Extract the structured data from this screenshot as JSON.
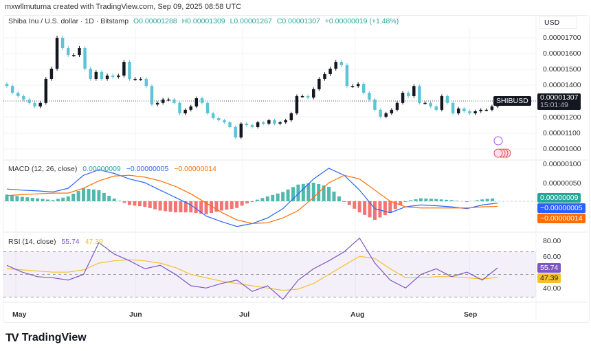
{
  "header": {
    "credit": "mxwllmutuma created with TradingView.com, Sep 09, 2025 08:58 UTC"
  },
  "legend": {
    "symbol": "Shiba Inu / U.S. dollar · 1D · Bitstamp",
    "open": "O0.00001288",
    "high": "H0.00001309",
    "low": "L0.00001267",
    "close": "C0.00001307",
    "change": "+0.00000019 (+1.48%)"
  },
  "price_axis": {
    "currency": "USD",
    "ticks": [
      "0.00001700",
      "0.00001600",
      "0.00001500",
      "0.00001400",
      "0.00001200",
      "0.00001100",
      "0.00001000",
      "0.00000100"
    ],
    "symbol_tag": "SHIBUSD",
    "last_price": "0.00001307",
    "countdown": "15:01:49"
  },
  "macd": {
    "label": "MACD (12, 26, close)",
    "hist": "0.00000009",
    "macd": "−0.00000005",
    "signal": "−0.00000014",
    "ticks": [
      "0.00000050"
    ]
  },
  "rsi": {
    "label": "RSI (14, close)",
    "rsi": "55.74",
    "ma": "47.39",
    "ticks": [
      "80.00",
      "60.00",
      "40.00"
    ]
  },
  "time_axis": [
    "May",
    "Jun",
    "Jul",
    "Aug",
    "Sep"
  ],
  "brand": "TradingView",
  "colors": {
    "up": "#131722",
    "down": "#5bc4d6",
    "macd": "#2962ff",
    "signal": "#ff6d00",
    "rsi": "#7e57c2",
    "rsi_ma": "#f5c02b",
    "hist_pos": "#26a69a",
    "hist_neg": "#ef5350"
  },
  "chart_data": {
    "type": "candlestick",
    "title": "Shiba Inu / U.S. dollar · 1D · Bitstamp",
    "ylim": [
      9.5e-06,
      1.78e-05
    ],
    "x_ticks": [
      "May",
      "Jun",
      "Jul",
      "Aug",
      "Sep"
    ],
    "close": [
      1.4e-05,
      1.358e-05,
      1.337e-05,
      1.316e-05,
      1.295e-05,
      1.273e-05,
      1.295e-05,
      1.444e-05,
      1.508e-05,
      1.7e-05,
      1.636e-05,
      1.593e-05,
      1.593e-05,
      1.636e-05,
      1.508e-05,
      1.444e-05,
      1.487e-05,
      1.444e-05,
      1.465e-05,
      1.457e-05,
      1.465e-05,
      1.55e-05,
      1.444e-05,
      1.444e-05,
      1.444e-05,
      1.4e-05,
      1.285e-05,
      1.295e-05,
      1.316e-05,
      1.316e-05,
      1.295e-05,
      1.23e-05,
      1.252e-05,
      1.273e-05,
      1.324e-05,
      1.295e-05,
      1.23e-05,
      1.2e-05,
      1.187e-05,
      1.174e-05,
      1.145e-05,
      1.08e-05,
      1.166e-05,
      1.157e-05,
      1.145e-05,
      1.174e-05,
      1.166e-05,
      1.187e-05,
      1.166e-05,
      1.174e-05,
      1.187e-05,
      1.23e-05,
      1.337e-05,
      1.337e-05,
      1.328e-05,
      1.38e-05,
      1.444e-05,
      1.474e-05,
      1.508e-05,
      1.55e-05,
      1.53e-05,
      1.4e-05,
      1.4e-05,
      1.413e-05,
      1.358e-05,
      1.316e-05,
      1.252e-05,
      1.209e-05,
      1.23e-05,
      1.252e-05,
      1.295e-05,
      1.358e-05,
      1.337e-05,
      1.4e-05,
      1.295e-05,
      1.295e-05,
      1.273e-05,
      1.252e-05,
      1.337e-05,
      1.295e-05,
      1.23e-05,
      1.26e-05,
      1.243e-05,
      1.23e-05,
      1.243e-05,
      1.252e-05,
      1.252e-05,
      1.273e-05,
      1.307e-05
    ],
    "macd": {
      "ylim": [
        -9e-07,
        1.2e-06
      ],
      "macd": [
        33,
        30,
        28,
        25,
        35,
        70,
        85,
        75,
        60,
        50,
        30,
        10,
        -10,
        -40,
        -55,
        -68,
        -60,
        -45,
        -20,
        20,
        60,
        89,
        70,
        30,
        -20,
        -31,
        -15,
        -10,
        -12,
        -15,
        -20,
        -10,
        -5
      ],
      "signal": [
        15,
        18,
        20,
        22,
        22,
        35,
        55,
        68,
        70,
        65,
        55,
        40,
        20,
        -5,
        -30,
        -50,
        -60,
        -58,
        -45,
        -25,
        10,
        50,
        70,
        60,
        30,
        0,
        -15,
        -18,
        -18,
        -18,
        -18,
        -15,
        -14
      ],
      "unit": "1e-8"
    },
    "rsi": {
      "ylim": [
        20,
        90
      ],
      "bands": [
        30,
        70
      ],
      "rsi": [
        58,
        52,
        48,
        47,
        45,
        50,
        78,
        68,
        62,
        55,
        58,
        50,
        40,
        38,
        42,
        45,
        35,
        40,
        28,
        45,
        55,
        62,
        70,
        82,
        60,
        45,
        38,
        50,
        55,
        48,
        52,
        45,
        55.74
      ],
      "ma": [
        55,
        54,
        53,
        52,
        52,
        54,
        60,
        62,
        63,
        62,
        60,
        56,
        50,
        47,
        44,
        42,
        40,
        38,
        36,
        37,
        42,
        50,
        58,
        66,
        64,
        55,
        47,
        47,
        48,
        48,
        47,
        46,
        47.39
      ]
    }
  }
}
